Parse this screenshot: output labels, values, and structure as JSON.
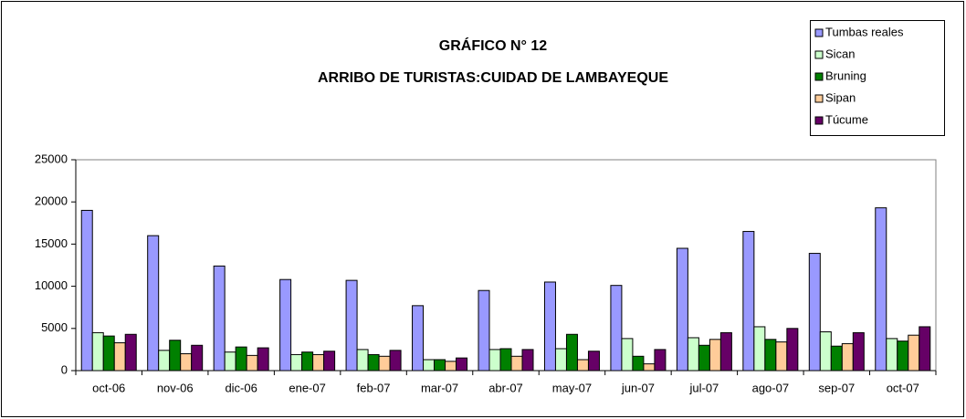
{
  "chart_data": {
    "type": "bar",
    "title": [
      "GRÁFICO N° 12",
      "ARRIBO DE TURISTAS:CUIDAD DE LAMBAYEQUE"
    ],
    "categories": [
      "oct-06",
      "nov-06",
      "dic-06",
      "ene-07",
      "feb-07",
      "mar-07",
      "abr-07",
      "may-07",
      "jun-07",
      "jul-07",
      "ago-07",
      "sep-07",
      "oct-07"
    ],
    "series": [
      {
        "name": "Tumbas reales",
        "color": "#9999ff",
        "values": [
          19000,
          16000,
          12400,
          10800,
          10700,
          7700,
          9500,
          10500,
          10100,
          14500,
          16500,
          13900,
          19300
        ]
      },
      {
        "name": "Sican",
        "color": "#ccffcc",
        "values": [
          4500,
          2400,
          2200,
          1900,
          2500,
          1300,
          2500,
          2600,
          3800,
          3900,
          5200,
          4600,
          3800
        ]
      },
      {
        "name": "Bruning",
        "color": "#008000",
        "values": [
          4100,
          3600,
          2800,
          2200,
          1900,
          1300,
          2600,
          4300,
          1700,
          3000,
          3700,
          2900,
          3500
        ]
      },
      {
        "name": "Sipan",
        "color": "#ffcc99",
        "values": [
          3300,
          2000,
          1800,
          1900,
          1700,
          1100,
          1700,
          1300,
          800,
          3700,
          3400,
          3200,
          4200
        ]
      },
      {
        "name": "Túcume",
        "color": "#660066",
        "values": [
          4300,
          3000,
          2700,
          2300,
          2400,
          1500,
          2500,
          2300,
          2500,
          4500,
          5000,
          4500,
          5200
        ]
      }
    ],
    "ylim": [
      0,
      25000
    ],
    "yticks": [
      0,
      5000,
      10000,
      15000,
      20000,
      25000
    ],
    "grid": false,
    "legend": "top-right"
  }
}
